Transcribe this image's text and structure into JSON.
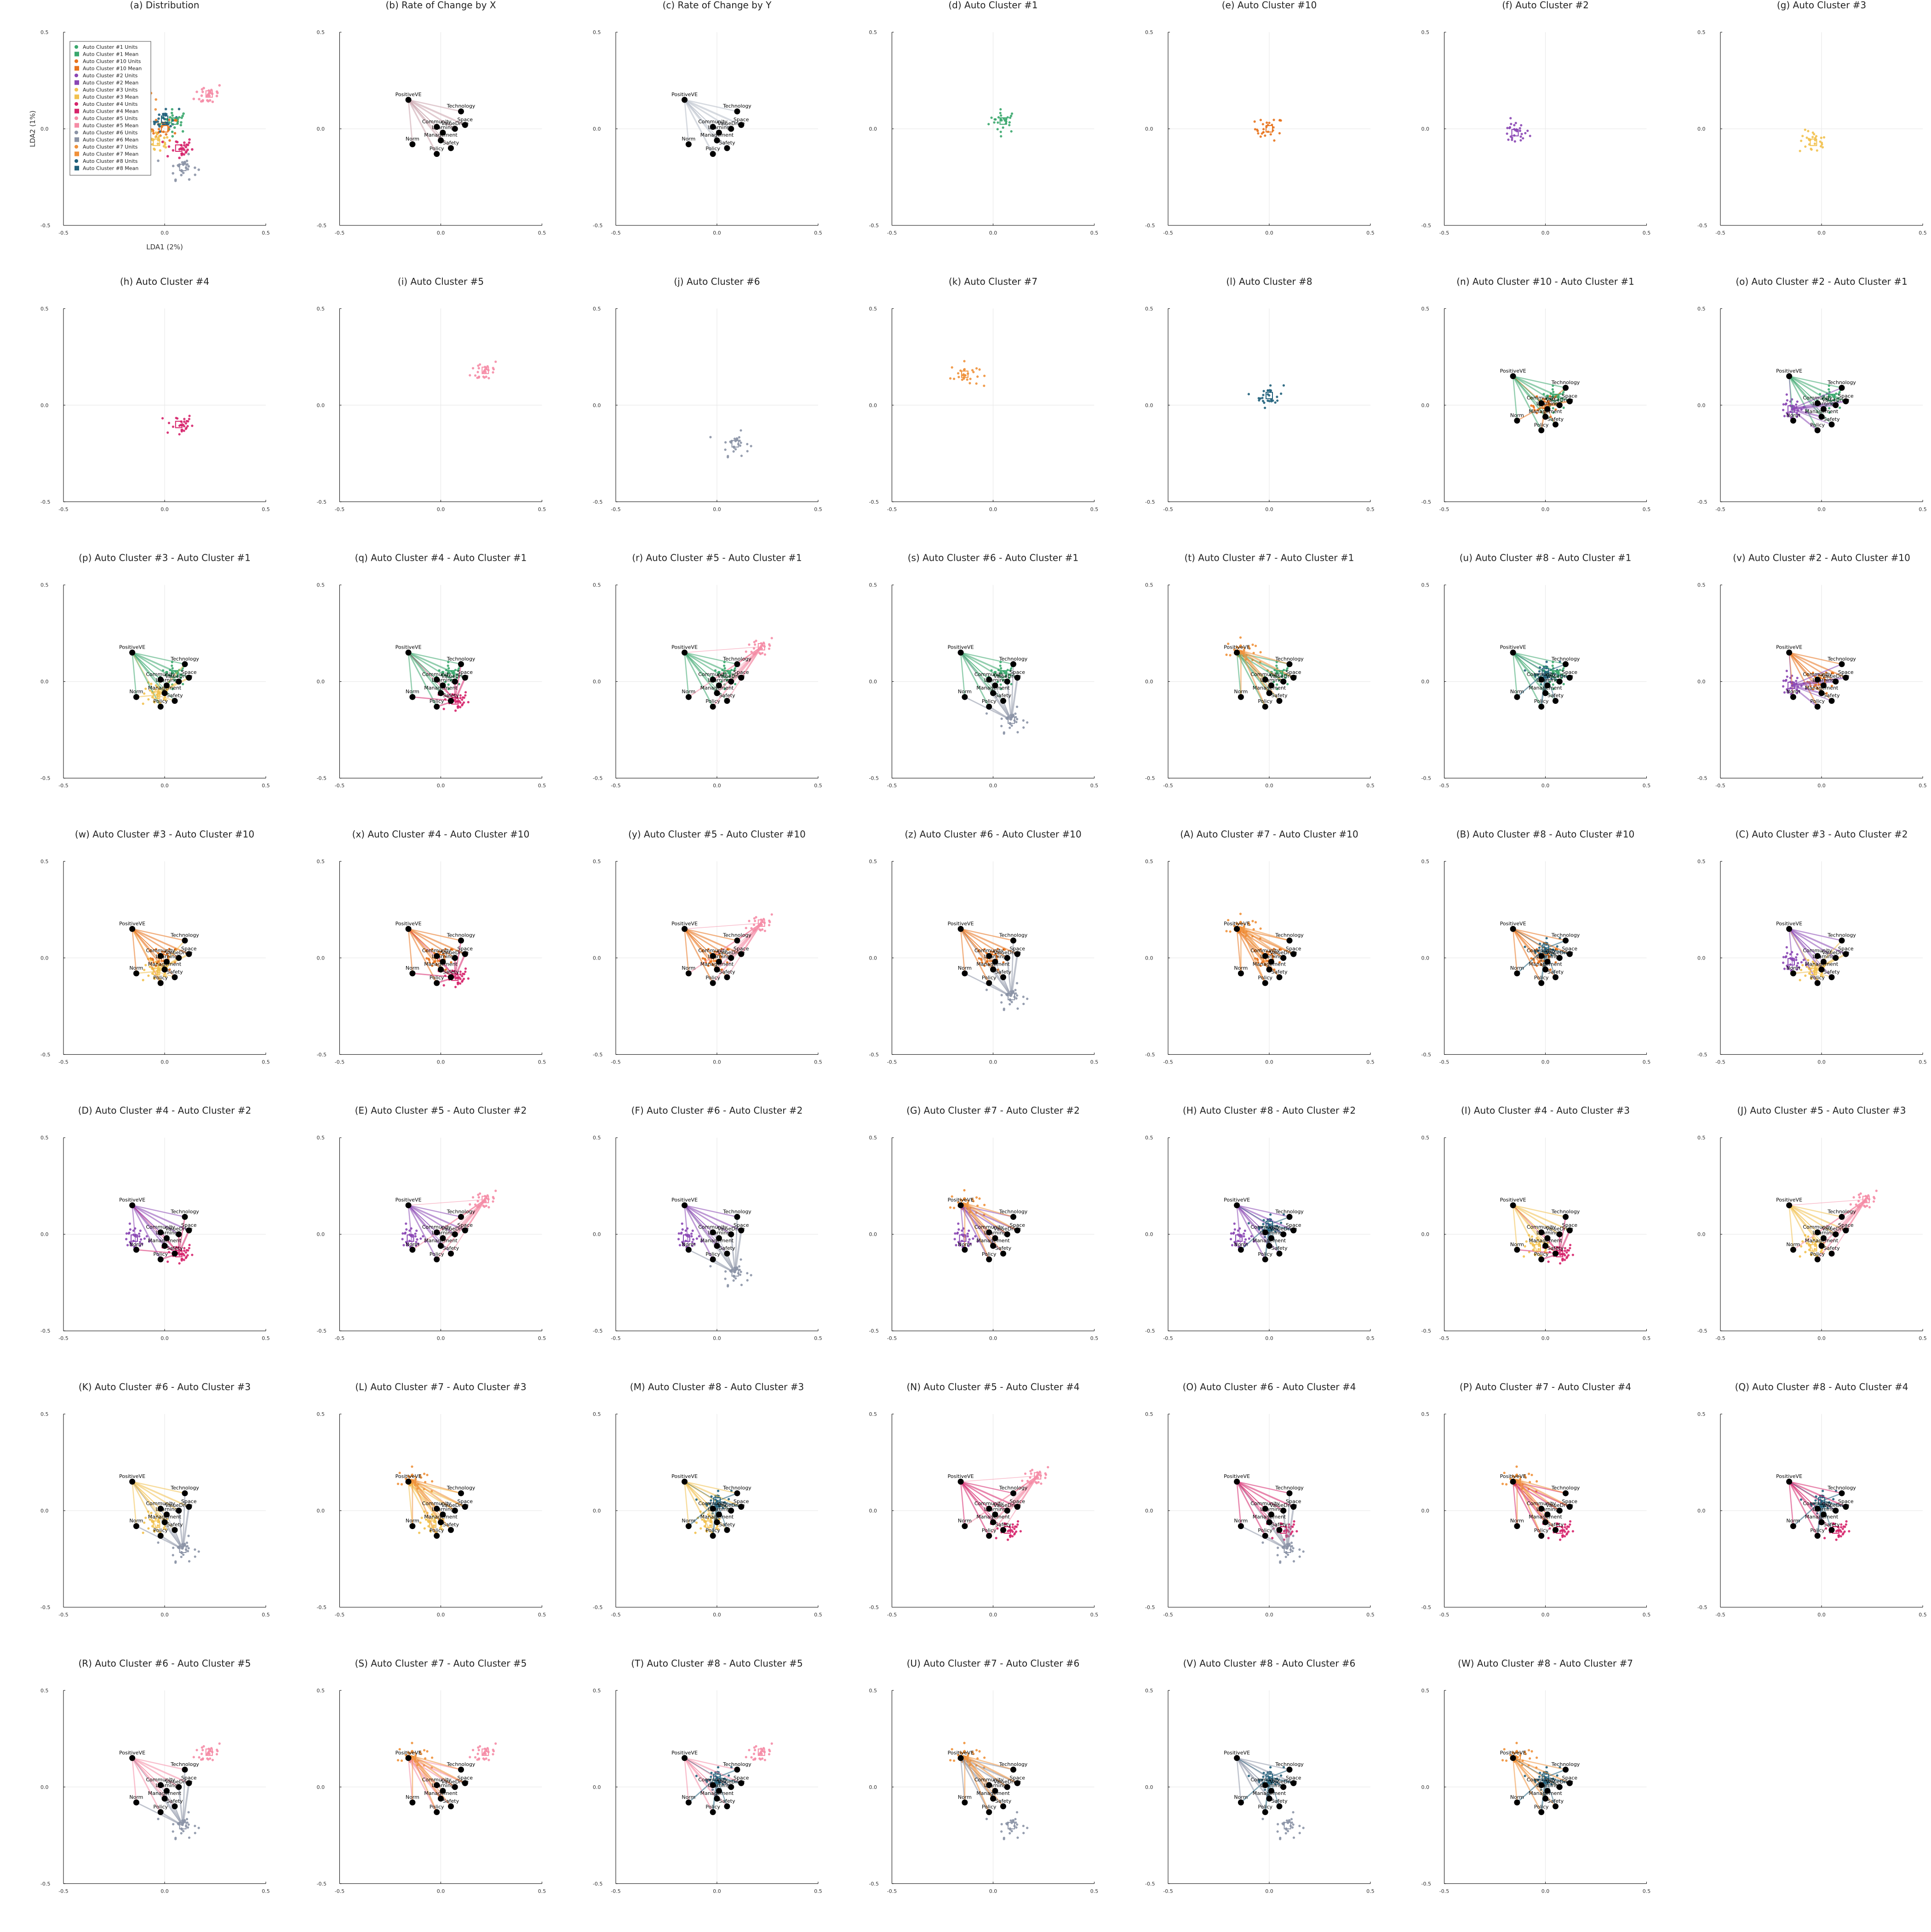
{
  "figure": {
    "xlabel": "LDA1 (2%)",
    "ylabel": "LDA2 (1%)",
    "xlim": [
      -0.5,
      0.5
    ],
    "ylim": [
      -0.5,
      0.5
    ],
    "xticks": [
      "-0.5",
      "0.0",
      "0.5"
    ],
    "yticks": [
      "-0.5",
      "0.0",
      "0.5"
    ]
  },
  "chart_data": {
    "type": "scatter",
    "clusters": [
      {
        "id": "1",
        "mean": [
          0.05,
          0.04
        ],
        "color": "#3aa76d"
      },
      {
        "id": "10",
        "mean": [
          0.0,
          0.0
        ],
        "color": "#e8731c"
      },
      {
        "id": "2",
        "mean": [
          -0.15,
          -0.02
        ],
        "color": "#8a46b4"
      },
      {
        "id": "3",
        "mean": [
          -0.04,
          -0.07
        ],
        "color": "#f2c14e"
      },
      {
        "id": "4",
        "mean": [
          0.07,
          -0.1
        ],
        "color": "#d6246b"
      },
      {
        "id": "5",
        "mean": [
          0.22,
          0.18
        ],
        "color": "#f58ca6"
      },
      {
        "id": "6",
        "mean": [
          0.09,
          -0.2
        ],
        "color": "#8b93a6"
      },
      {
        "id": "7",
        "mean": [
          -0.14,
          0.16
        ],
        "color": "#f0913a"
      },
      {
        "id": "8",
        "mean": [
          0.0,
          0.05
        ],
        "color": "#1f5f7a"
      }
    ],
    "legend": {
      "position": "top-left",
      "entries": [
        {
          "label": "Auto Cluster #1 Units",
          "color": "#3aa76d",
          "marker": "circle"
        },
        {
          "label": "Auto Cluster #1 Mean",
          "color": "#3aa76d",
          "marker": "square"
        },
        {
          "label": "Auto Cluster #10 Units",
          "color": "#e8731c",
          "marker": "circle"
        },
        {
          "label": "Auto Cluster #10 Mean",
          "color": "#e8731c",
          "marker": "square"
        },
        {
          "label": "Auto Cluster #2 Units",
          "color": "#8a46b4",
          "marker": "circle"
        },
        {
          "label": "Auto Cluster #2 Mean",
          "color": "#8a46b4",
          "marker": "square"
        },
        {
          "label": "Auto Cluster #3 Units",
          "color": "#f2c14e",
          "marker": "circle"
        },
        {
          "label": "Auto Cluster #3 Mean",
          "color": "#f2c14e",
          "marker": "square"
        },
        {
          "label": "Auto Cluster #4 Units",
          "color": "#d6246b",
          "marker": "circle"
        },
        {
          "label": "Auto Cluster #4 Mean",
          "color": "#d6246b",
          "marker": "square"
        },
        {
          "label": "Auto Cluster #5 Units",
          "color": "#f58ca6",
          "marker": "circle"
        },
        {
          "label": "Auto Cluster #5 Mean",
          "color": "#f58ca6",
          "marker": "square"
        },
        {
          "label": "Auto Cluster #6 Units",
          "color": "#8b93a6",
          "marker": "circle"
        },
        {
          "label": "Auto Cluster #6 Mean",
          "color": "#8b93a6",
          "marker": "square"
        },
        {
          "label": "Auto Cluster #7 Units",
          "color": "#f0913a",
          "marker": "circle"
        },
        {
          "label": "Auto Cluster #7 Mean",
          "color": "#f0913a",
          "marker": "square"
        },
        {
          "label": "Auto Cluster #8 Units",
          "color": "#1f5f7a",
          "marker": "circle"
        },
        {
          "label": "Auto Cluster #8 Mean",
          "color": "#1f5f7a",
          "marker": "square"
        }
      ]
    },
    "words": [
      {
        "label": "PositiveVE",
        "x": -0.16,
        "y": 0.15
      },
      {
        "label": "Technology",
        "x": 0.1,
        "y": 0.09
      },
      {
        "label": "Space",
        "x": 0.12,
        "y": 0.02
      },
      {
        "label": "Community",
        "x": -0.02,
        "y": 0.01
      },
      {
        "label": "ValueDrive",
        "x": 0.07,
        "y": 0.0
      },
      {
        "label": "Learning",
        "x": 0.01,
        "y": -0.02
      },
      {
        "label": "Norm",
        "x": -0.14,
        "y": -0.08
      },
      {
        "label": "Management",
        "x": 0.0,
        "y": -0.06
      },
      {
        "label": "Safety",
        "x": 0.05,
        "y": -0.1
      },
      {
        "label": "Policy",
        "x": -0.02,
        "y": -0.13
      }
    ],
    "panels": [
      {
        "title": "(a) Distribution",
        "kind": "distribution"
      },
      {
        "title": "(b) Rate of Change by X",
        "kind": "rate",
        "color": "#c9a2ab"
      },
      {
        "title": "(c) Rate of Change by Y",
        "kind": "rate",
        "color": "#b6bcc8"
      },
      {
        "title": "(d) Auto Cluster #1",
        "kind": "single",
        "a": "1"
      },
      {
        "title": "(e) Auto Cluster #10",
        "kind": "single",
        "a": "10"
      },
      {
        "title": "(f) Auto Cluster #2",
        "kind": "single",
        "a": "2"
      },
      {
        "title": "(g) Auto Cluster #3",
        "kind": "single",
        "a": "3"
      },
      {
        "title": "(h) Auto Cluster #4",
        "kind": "single",
        "a": "4"
      },
      {
        "title": "(i) Auto Cluster #5",
        "kind": "single",
        "a": "5"
      },
      {
        "title": "(j) Auto Cluster #6",
        "kind": "single",
        "a": "6"
      },
      {
        "title": "(k) Auto Cluster #7",
        "kind": "single",
        "a": "7"
      },
      {
        "title": "(l) Auto Cluster #8",
        "kind": "single",
        "a": "8"
      },
      {
        "title": "(n) Auto Cluster #10 - Auto Cluster #1",
        "kind": "pair",
        "a": "10",
        "b": "1"
      },
      {
        "title": "(o) Auto Cluster #2 - Auto Cluster #1",
        "kind": "pair",
        "a": "2",
        "b": "1"
      },
      {
        "title": "(p) Auto Cluster #3 - Auto Cluster #1",
        "kind": "pair",
        "a": "3",
        "b": "1"
      },
      {
        "title": "(q) Auto Cluster #4 - Auto Cluster #1",
        "kind": "pair",
        "a": "4",
        "b": "1"
      },
      {
        "title": "(r) Auto Cluster #5 - Auto Cluster #1",
        "kind": "pair",
        "a": "5",
        "b": "1"
      },
      {
        "title": "(s) Auto Cluster #6 - Auto Cluster #1",
        "kind": "pair",
        "a": "6",
        "b": "1"
      },
      {
        "title": "(t) Auto Cluster #7 - Auto Cluster #1",
        "kind": "pair",
        "a": "7",
        "b": "1"
      },
      {
        "title": "(u) Auto Cluster #8 - Auto Cluster #1",
        "kind": "pair",
        "a": "8",
        "b": "1"
      },
      {
        "title": "(v) Auto Cluster #2 - Auto Cluster #10",
        "kind": "pair",
        "a": "2",
        "b": "10"
      },
      {
        "title": "(w) Auto Cluster #3 - Auto Cluster #10",
        "kind": "pair",
        "a": "3",
        "b": "10"
      },
      {
        "title": "(x) Auto Cluster #4 - Auto Cluster #10",
        "kind": "pair",
        "a": "4",
        "b": "10"
      },
      {
        "title": "(y) Auto Cluster #5 - Auto Cluster #10",
        "kind": "pair",
        "a": "5",
        "b": "10"
      },
      {
        "title": "(z) Auto Cluster #6 - Auto Cluster #10",
        "kind": "pair",
        "a": "6",
        "b": "10"
      },
      {
        "title": "(A) Auto Cluster #7 - Auto Cluster #10",
        "kind": "pair",
        "a": "7",
        "b": "10"
      },
      {
        "title": "(B) Auto Cluster #8 - Auto Cluster #10",
        "kind": "pair",
        "a": "8",
        "b": "10"
      },
      {
        "title": "(C) Auto Cluster #3 - Auto Cluster #2",
        "kind": "pair",
        "a": "3",
        "b": "2"
      },
      {
        "title": "(D) Auto Cluster #4 - Auto Cluster #2",
        "kind": "pair",
        "a": "4",
        "b": "2"
      },
      {
        "title": "(E) Auto Cluster #5 - Auto Cluster #2",
        "kind": "pair",
        "a": "5",
        "b": "2"
      },
      {
        "title": "(F) Auto Cluster #6 - Auto Cluster #2",
        "kind": "pair",
        "a": "6",
        "b": "2"
      },
      {
        "title": "(G) Auto Cluster #7 - Auto Cluster #2",
        "kind": "pair",
        "a": "7",
        "b": "2"
      },
      {
        "title": "(H) Auto Cluster #8 - Auto Cluster #2",
        "kind": "pair",
        "a": "8",
        "b": "2"
      },
      {
        "title": "(I) Auto Cluster #4 - Auto Cluster #3",
        "kind": "pair",
        "a": "4",
        "b": "3"
      },
      {
        "title": "(J) Auto Cluster #5 - Auto Cluster #3",
        "kind": "pair",
        "a": "5",
        "b": "3"
      },
      {
        "title": "(K) Auto Cluster #6 - Auto Cluster #3",
        "kind": "pair",
        "a": "6",
        "b": "3"
      },
      {
        "title": "(L) Auto Cluster #7 - Auto Cluster #3",
        "kind": "pair",
        "a": "7",
        "b": "3"
      },
      {
        "title": "(M) Auto Cluster #8 - Auto Cluster #3",
        "kind": "pair",
        "a": "8",
        "b": "3"
      },
      {
        "title": "(N) Auto Cluster #5 - Auto Cluster #4",
        "kind": "pair",
        "a": "5",
        "b": "4"
      },
      {
        "title": "(O) Auto Cluster #6 - Auto Cluster #4",
        "kind": "pair",
        "a": "6",
        "b": "4"
      },
      {
        "title": "(P) Auto Cluster #7 - Auto Cluster #4",
        "kind": "pair",
        "a": "7",
        "b": "4"
      },
      {
        "title": "(Q) Auto Cluster #8 - Auto Cluster #4",
        "kind": "pair",
        "a": "8",
        "b": "4"
      },
      {
        "title": "(R) Auto Cluster #6 - Auto Cluster #5",
        "kind": "pair",
        "a": "6",
        "b": "5"
      },
      {
        "title": "(S) Auto Cluster #7 - Auto Cluster #5",
        "kind": "pair",
        "a": "7",
        "b": "5"
      },
      {
        "title": "(T) Auto Cluster #8 - Auto Cluster #5",
        "kind": "pair",
        "a": "8",
        "b": "5"
      },
      {
        "title": "(U) Auto Cluster #7 - Auto Cluster #6",
        "kind": "pair",
        "a": "7",
        "b": "6"
      },
      {
        "title": "(V) Auto Cluster #8 - Auto Cluster #6",
        "kind": "pair",
        "a": "8",
        "b": "6"
      },
      {
        "title": "(W) Auto Cluster #8 - Auto Cluster #7",
        "kind": "pair",
        "a": "8",
        "b": "7"
      }
    ]
  }
}
